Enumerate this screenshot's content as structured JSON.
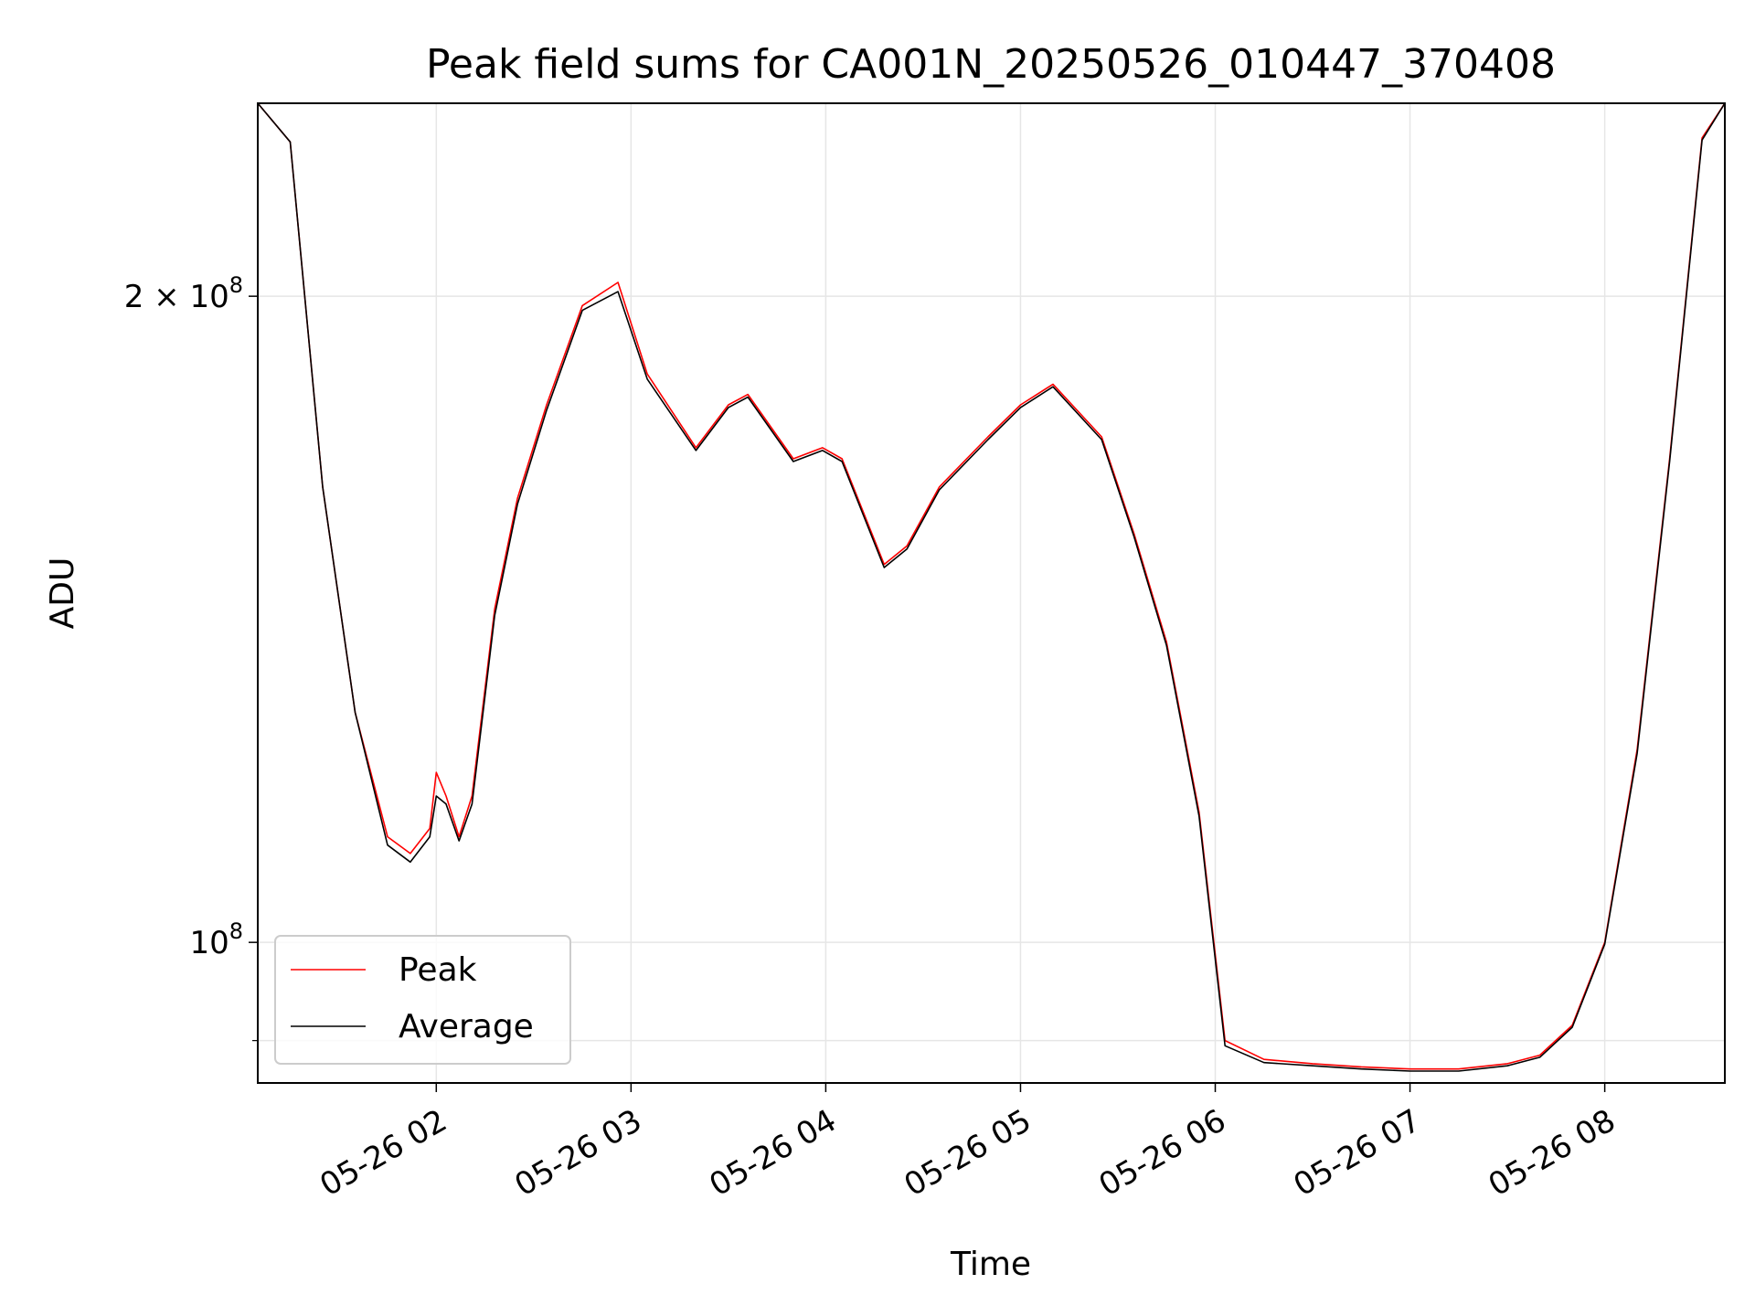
{
  "chart_data": {
    "type": "line",
    "title": "Peak field sums for CA001N_20250526_010447_370408",
    "xlabel": "Time",
    "ylabel": "ADU",
    "y_scale": "log",
    "ylim": [
      86000000,
      246000000
    ],
    "xlim": [
      "2025-05-26 01:05",
      "2025-05-26 08:37"
    ],
    "grid": true,
    "legend_position": "lower-left",
    "x_ticks": [
      {
        "label": "05-26 02",
        "time": "2025-05-26 02:00"
      },
      {
        "label": "05-26 03",
        "time": "2025-05-26 03:00"
      },
      {
        "label": "05-26 04",
        "time": "2025-05-26 04:00"
      },
      {
        "label": "05-26 05",
        "time": "2025-05-26 05:00"
      },
      {
        "label": "05-26 06",
        "time": "2025-05-26 06:00"
      },
      {
        "label": "05-26 07",
        "time": "2025-05-26 07:00"
      },
      {
        "label": "05-26 08",
        "time": "2025-05-26 08:00"
      }
    ],
    "y_ticks": [
      {
        "value": 200000000,
        "base": "2 × 10",
        "exp": "8"
      },
      {
        "value": 100000000,
        "base": "10",
        "exp": "8"
      }
    ],
    "y_minor_ticks": [
      90000000
    ],
    "series": [
      {
        "name": "Peak",
        "color": "#ff0000",
        "x": [
          "2025-05-26 01:05",
          "2025-05-26 01:15",
          "2025-05-26 01:25",
          "2025-05-26 01:35",
          "2025-05-26 01:45",
          "2025-05-26 01:52",
          "2025-05-26 01:58",
          "2025-05-26 02:00",
          "2025-05-26 02:03",
          "2025-05-26 02:07",
          "2025-05-26 02:11",
          "2025-05-26 02:18",
          "2025-05-26 02:25",
          "2025-05-26 02:34",
          "2025-05-26 02:45",
          "2025-05-26 02:56",
          "2025-05-26 03:05",
          "2025-05-26 03:20",
          "2025-05-26 03:30",
          "2025-05-26 03:36",
          "2025-05-26 03:50",
          "2025-05-26 03:59",
          "2025-05-26 04:05",
          "2025-05-26 04:18",
          "2025-05-26 04:25",
          "2025-05-26 04:35",
          "2025-05-26 04:50",
          "2025-05-26 05:00",
          "2025-05-26 05:10",
          "2025-05-26 05:25",
          "2025-05-26 05:35",
          "2025-05-26 05:45",
          "2025-05-26 05:55",
          "2025-05-26 06:03",
          "2025-05-26 06:15",
          "2025-05-26 06:30",
          "2025-05-26 06:45",
          "2025-05-26 07:00",
          "2025-05-26 07:15",
          "2025-05-26 07:30",
          "2025-05-26 07:40",
          "2025-05-26 07:50",
          "2025-05-26 08:00",
          "2025-05-26 08:10",
          "2025-05-26 08:20",
          "2025-05-26 08:30",
          "2025-05-26 08:37"
        ],
        "y": [
          246000000,
          236000000,
          163000000,
          128000000,
          112000000,
          110000000,
          113000000,
          120000000,
          117000000,
          112000000,
          117000000,
          143000000,
          161000000,
          178000000,
          198000000,
          203000000,
          184000000,
          170000000,
          178000000,
          180000000,
          168000000,
          170000000,
          168000000,
          150000000,
          153000000,
          163000000,
          172000000,
          178000000,
          182000000,
          172000000,
          155000000,
          138000000,
          115000000,
          90000000,
          88200000,
          87800000,
          87500000,
          87300000,
          87300000,
          87800000,
          88600000,
          91500000,
          100000000,
          123000000,
          168000000,
          237000000,
          246000000
        ]
      },
      {
        "name": "Average",
        "color": "#000000",
        "x": [
          "2025-05-26 01:05",
          "2025-05-26 01:15",
          "2025-05-26 01:25",
          "2025-05-26 01:35",
          "2025-05-26 01:45",
          "2025-05-26 01:52",
          "2025-05-26 01:58",
          "2025-05-26 02:00",
          "2025-05-26 02:03",
          "2025-05-26 02:07",
          "2025-05-26 02:11",
          "2025-05-26 02:18",
          "2025-05-26 02:25",
          "2025-05-26 02:34",
          "2025-05-26 02:45",
          "2025-05-26 02:56",
          "2025-05-26 03:05",
          "2025-05-26 03:20",
          "2025-05-26 03:30",
          "2025-05-26 03:36",
          "2025-05-26 03:50",
          "2025-05-26 03:59",
          "2025-05-26 04:05",
          "2025-05-26 04:18",
          "2025-05-26 04:25",
          "2025-05-26 04:35",
          "2025-05-26 04:50",
          "2025-05-26 05:00",
          "2025-05-26 05:10",
          "2025-05-26 05:25",
          "2025-05-26 05:35",
          "2025-05-26 05:45",
          "2025-05-26 05:55",
          "2025-05-26 06:03",
          "2025-05-26 06:15",
          "2025-05-26 06:30",
          "2025-05-26 06:45",
          "2025-05-26 07:00",
          "2025-05-26 07:15",
          "2025-05-26 07:30",
          "2025-05-26 07:40",
          "2025-05-26 07:50",
          "2025-05-26 08:00",
          "2025-05-26 08:10",
          "2025-05-26 08:20",
          "2025-05-26 08:30",
          "2025-05-26 08:37"
        ],
        "y": [
          246000000,
          236000000,
          163000000,
          128000000,
          111000000,
          109000000,
          112000000,
          117000000,
          116000000,
          111500000,
          116000000,
          142000000,
          160000000,
          177000000,
          197000000,
          201000000,
          183000000,
          169500000,
          177500000,
          179500000,
          167500000,
          169500000,
          167500000,
          149500000,
          152500000,
          162500000,
          171500000,
          177500000,
          181500000,
          171500000,
          154500000,
          137500000,
          114500000,
          89500000,
          87900000,
          87600000,
          87300000,
          87100000,
          87100000,
          87600000,
          88400000,
          91300000,
          99800000,
          122500000,
          167500000,
          236500000,
          246000000
        ]
      }
    ]
  }
}
